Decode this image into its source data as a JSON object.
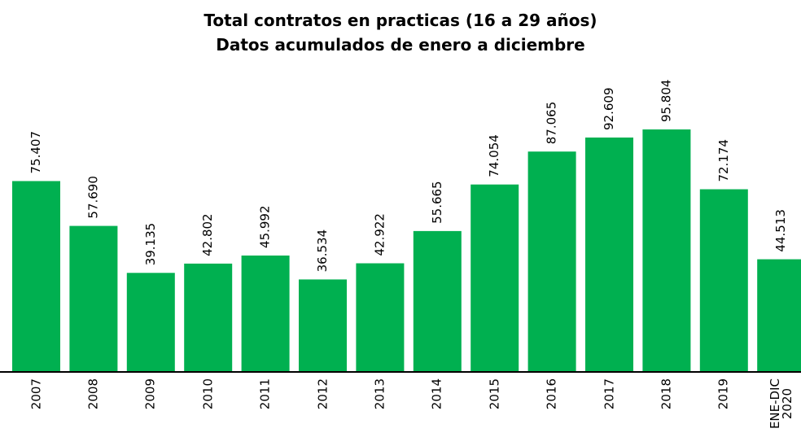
{
  "chart_data": {
    "type": "bar",
    "title": "Total contratos en practicas (16 a 29 años)",
    "subtitle": "Datos acumulados de enero a diciembre",
    "categories": [
      "2007",
      "2008",
      "2009",
      "2010",
      "2011",
      "2012",
      "2013",
      "2014",
      "2015",
      "2016",
      "2017",
      "2018",
      "2019",
      "ENE-DIC\n2020"
    ],
    "values": [
      75407,
      57690,
      39135,
      42802,
      45992,
      36534,
      42922,
      55665,
      74054,
      87065,
      92609,
      95804,
      72174,
      44513
    ],
    "value_labels": [
      "75.407",
      "57.690",
      "39.135",
      "42.802",
      "45.992",
      "36.534",
      "42.922",
      "55.665",
      "74.054",
      "87.065",
      "92.609",
      "95.804",
      "72.174",
      "44.513"
    ],
    "color": "#00b050",
    "ylim": [
      0,
      100000
    ]
  }
}
